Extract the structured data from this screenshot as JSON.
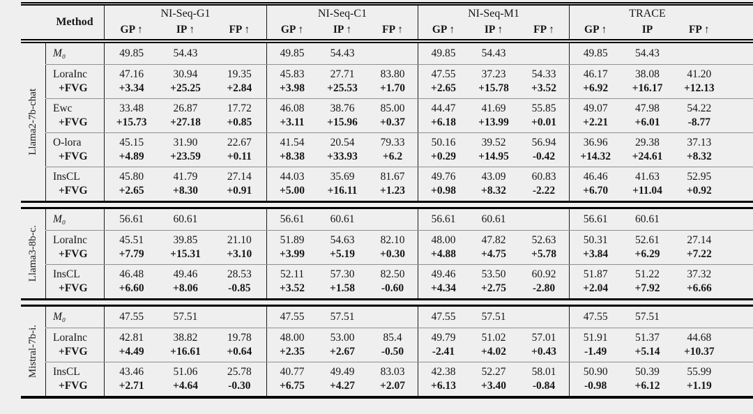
{
  "table": {
    "method_header": "Method",
    "groups": [
      {
        "name": "NI-Seq-G1",
        "cols": [
          "GP ↑",
          "IP ↑",
          "FP ↑"
        ]
      },
      {
        "name": "NI-Seq-C1",
        "cols": [
          "GP ↑",
          "IP ↑",
          "FP ↑"
        ]
      },
      {
        "name": "NI-Seq-M1",
        "cols": [
          "GP ↑",
          "IP ↑",
          "FP ↑"
        ]
      },
      {
        "name": "TRACE",
        "cols": [
          "GP ↑",
          "IP",
          "FP ↑"
        ]
      }
    ],
    "sections": [
      {
        "model": "Llama2-7b-chat",
        "rows": [
          {
            "method": "M₀",
            "base": [
              "49.85",
              "54.43",
              "",
              "49.85",
              "54.43",
              "",
              "49.85",
              "54.43",
              "",
              "49.85",
              "54.43",
              ""
            ]
          },
          {
            "method": "LoraInc",
            "delta_label": "+FVG",
            "base": [
              "47.16",
              "30.94",
              "19.35",
              "45.83",
              "27.71",
              "83.80",
              "47.55",
              "37.23",
              "54.33",
              "46.17",
              "38.08",
              "41.20"
            ],
            "delta": [
              "+3.34",
              "+25.25",
              "+2.84",
              "+3.98",
              "+25.53",
              "+1.70",
              "+2.65",
              "+15.78",
              "+3.52",
              "+6.92",
              "+16.17",
              "+12.13"
            ]
          },
          {
            "method": "Ewc",
            "delta_label": "+FVG",
            "base": [
              "33.48",
              "26.87",
              "17.72",
              "46.08",
              "38.76",
              "85.00",
              "44.47",
              "41.69",
              "55.85",
              "49.07",
              "47.98",
              "54.22"
            ],
            "delta": [
              "+15.73",
              "+27.18",
              "+0.85",
              "+3.11",
              "+15.96",
              "+0.37",
              "+6.18",
              "+13.99",
              "+0.01",
              "+2.21",
              "+6.01",
              "-8.77"
            ]
          },
          {
            "method": "O-lora",
            "delta_label": "+FVG",
            "base": [
              "45.15",
              "31.90",
              "22.67",
              "41.54",
              "20.54",
              "79.33",
              "50.16",
              "39.52",
              "56.94",
              "36.96",
              "29.38",
              "37.13"
            ],
            "delta": [
              "+4.89",
              "+23.59",
              "+0.11",
              "+8.38",
              "+33.93",
              "+6.2",
              "+0.29",
              "+14.95",
              "-0.42",
              "+14.32",
              "+24.61",
              "+8.32"
            ]
          },
          {
            "method": "InsCL",
            "delta_label": "+FVG",
            "base": [
              "45.80",
              "41.79",
              "27.14",
              "44.03",
              "35.69",
              "81.67",
              "49.76",
              "43.09",
              "60.83",
              "46.46",
              "41.63",
              "52.95"
            ],
            "delta": [
              "+2.65",
              "+8.30",
              "+0.91",
              "+5.00",
              "+16.11",
              "+1.23",
              "+0.98",
              "+8.32",
              "-2.22",
              "+6.70",
              "+11.04",
              "+0.92"
            ]
          }
        ]
      },
      {
        "model": "Llama3-8b-c.",
        "rows": [
          {
            "method": "M₀",
            "base": [
              "56.61",
              "60.61",
              "",
              "56.61",
              "60.61",
              "",
              "56.61",
              "60.61",
              "",
              "56.61",
              "60.61",
              ""
            ]
          },
          {
            "method": "LoraInc",
            "delta_label": "+FVG",
            "base": [
              "45.51",
              "39.85",
              "21.10",
              "51.89",
              "54.63",
              "82.10",
              "48.00",
              "47.82",
              "52.63",
              "50.31",
              "52.61",
              "27.14"
            ],
            "delta": [
              "+7.79",
              "+15.31",
              "+3.10",
              "+3.99",
              "+5.19",
              "+0.30",
              "+4.88",
              "+4.75",
              "+5.78",
              "+3.84",
              "+6.29",
              "+7.22"
            ]
          },
          {
            "method": "InsCL",
            "delta_label": "+FVG",
            "base": [
              "46.48",
              "49.46",
              "28.53",
              "52.11",
              "57.30",
              "82.50",
              "49.46",
              "53.50",
              "60.92",
              "51.87",
              "51.22",
              "37.32"
            ],
            "delta": [
              "+6.60",
              "+8.06",
              "-0.85",
              "+3.52",
              "+1.58",
              "-0.60",
              "+4.34",
              "+2.75",
              "-2.80",
              "+2.04",
              "+7.92",
              "+6.66"
            ]
          }
        ]
      },
      {
        "model": "Mistral-7b-i.",
        "rows": [
          {
            "method": "M₀",
            "base": [
              "47.55",
              "57.51",
              "",
              "47.55",
              "57.51",
              "",
              "47.55",
              "57.51",
              "",
              "47.55",
              "57.51",
              ""
            ]
          },
          {
            "method": "LoraInc",
            "delta_label": "+FVG",
            "base": [
              "42.81",
              "38.82",
              "19.78",
              "48.00",
              "53.00",
              "85.4",
              "49.79",
              "51.02",
              "57.01",
              "51.91",
              "51.37",
              "44.68"
            ],
            "delta": [
              "+4.49",
              "+16.61",
              "+0.64",
              "+2.35",
              "+2.67",
              "-0.50",
              "-2.41",
              "+4.02",
              "+0.43",
              "-1.49",
              "+5.14",
              "+10.37"
            ]
          },
          {
            "method": "InsCL",
            "delta_label": "+FVG",
            "base": [
              "43.46",
              "51.06",
              "25.78",
              "40.77",
              "49.49",
              "83.03",
              "42.38",
              "52.27",
              "58.01",
              "50.90",
              "50.39",
              "55.99"
            ],
            "delta": [
              "+2.71",
              "+4.64",
              "-0.30",
              "+6.75",
              "+4.27",
              "+2.07",
              "+6.13",
              "+3.40",
              "-0.84",
              "-0.98",
              "+6.12",
              "+1.19"
            ]
          }
        ]
      }
    ]
  }
}
